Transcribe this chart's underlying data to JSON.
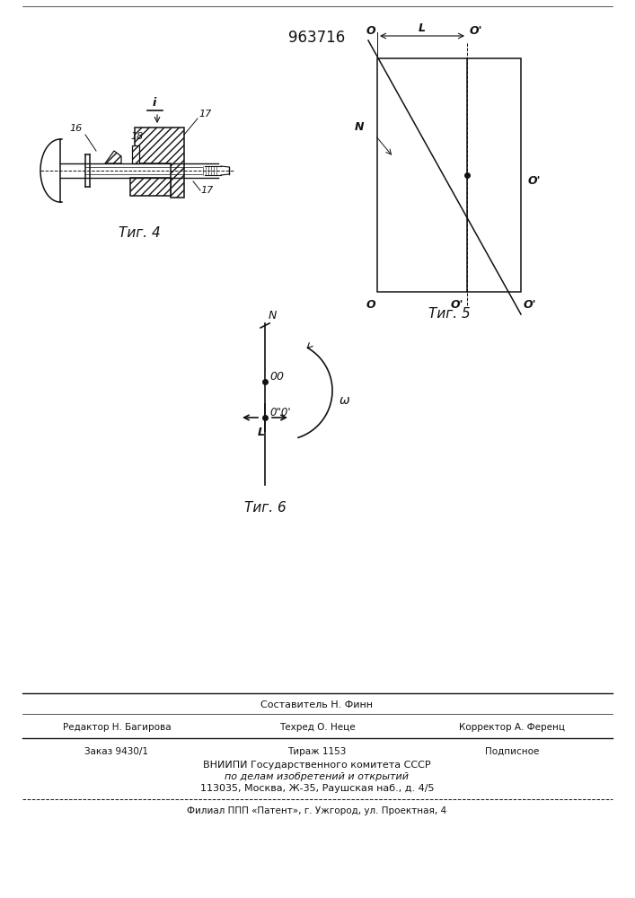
{
  "patent_number": "963716",
  "background_color": "#ffffff",
  "line_color": "#111111",
  "fig4_label": "Τиг. 4",
  "fig5_label": "Τиг. 5",
  "fig6_label": "Τиг. 6",
  "footer_sestavitel": "Составитель Н. Финн",
  "footer_redaktor": "Редактор Н. Багирова",
  "footer_tehred": "Техред О. Неце",
  "footer_korrektor": "Корректор А. Ференц",
  "footer_zakaz": "Заказ 9430/1",
  "footer_tirazh": "Тираж 1153",
  "footer_podpisnoe": "Подписное",
  "footer_vniipи": "ВНИИПИ Государственного комитета СССР",
  "footer_dela": "по делам изобретений и открытий",
  "footer_addr": "113035, Москва, Ж-35, Раушская наб., д. 4/5",
  "footer_filial": "Филиал ППП «Патент», г. Ужгород, ул. Проектная, 4"
}
